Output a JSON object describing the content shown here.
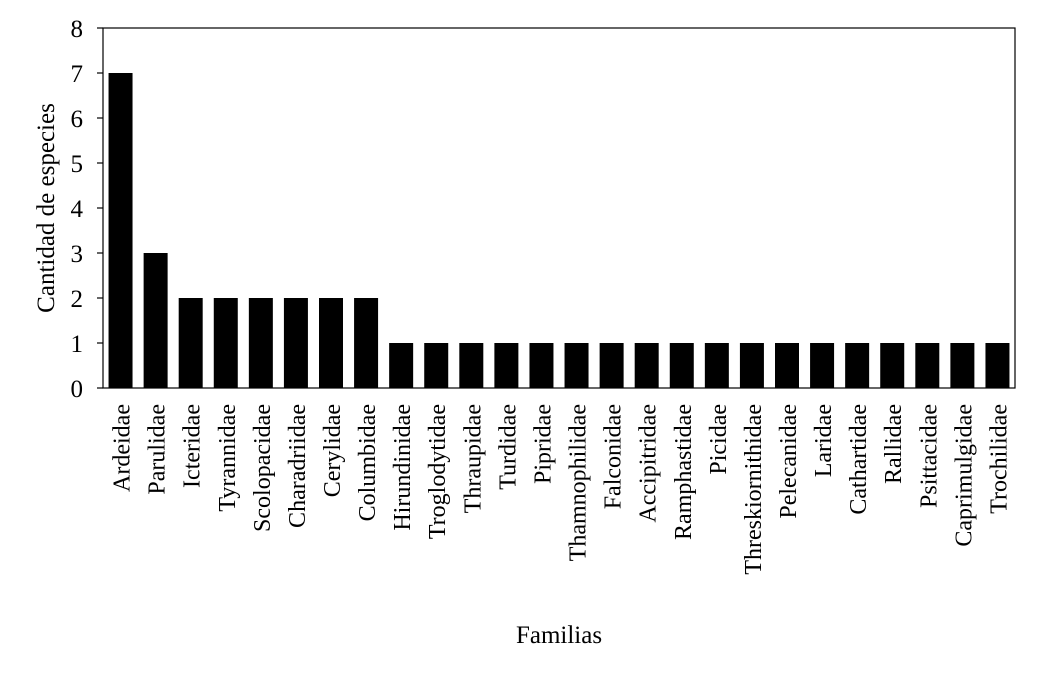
{
  "chart_data": {
    "type": "bar",
    "xlabel": "Familias",
    "ylabel": "Cantidad de especies",
    "ylim": [
      0,
      8
    ],
    "yticks": [
      0,
      1,
      2,
      3,
      4,
      5,
      6,
      7,
      8
    ],
    "grid": false,
    "legend": "none",
    "bar_color": "#000000",
    "categories": [
      "Ardeidae",
      "Parulidae",
      "Icteridae",
      "Tyrannidae",
      "Scolopacidae",
      "Charadriidae",
      "Cerylidae",
      "Columbidae",
      "Hirundinidae",
      "Troglodytidae",
      "Thraupidae",
      "Turdidae",
      "Pipridae",
      "Thamnophilidae",
      "Falconidae",
      "Accipitridae",
      "Ramphastidae",
      "Picidae",
      "Threskiornithidae",
      "Pelecanidae",
      "Laridae",
      "Cathartidae",
      "Rallidae",
      "Psittacidae",
      "Caprimulgidae",
      "Trochilidae"
    ],
    "values": [
      7,
      3,
      2,
      2,
      2,
      2,
      2,
      2,
      1,
      1,
      1,
      1,
      1,
      1,
      1,
      1,
      1,
      1,
      1,
      1,
      1,
      1,
      1,
      1,
      1,
      1
    ]
  }
}
